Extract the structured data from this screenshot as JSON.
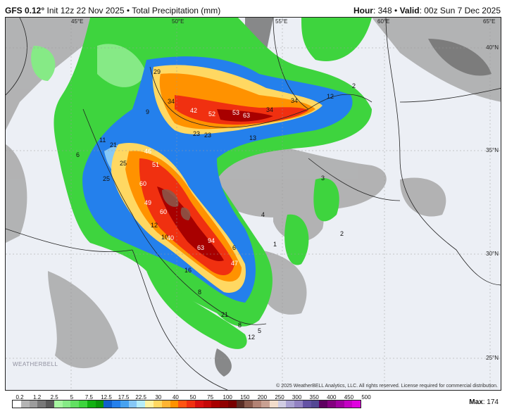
{
  "header": {
    "model": "GFS 0.12°",
    "init": "Init 12z 22 Nov 2025",
    "separator": "•",
    "product": "Total Precipitation (mm)",
    "hour_label": "Hour",
    "hour": ": 348",
    "valid_label": "Valid",
    "valid": ": 00z Sun 7 Dec 2025"
  },
  "map": {
    "lon_labels": [
      "45°E",
      "50°E",
      "55°E",
      "60°E",
      "65°E"
    ],
    "lat_labels": [
      "40°N",
      "35°N",
      "30°N",
      "25°N"
    ],
    "value_labels": [
      "29",
      "34",
      "42",
      "52",
      "53",
      "63",
      "34",
      "34",
      "12",
      "23",
      "23",
      "13",
      "9",
      "11",
      "6",
      "21",
      "25",
      "25",
      "46",
      "51",
      "60",
      "49",
      "60",
      "12",
      "10",
      "40",
      "63",
      "94",
      "47",
      "16",
      "8",
      "21",
      "8",
      "12",
      "4",
      "2",
      "6",
      "5",
      "3",
      "2",
      "1"
    ],
    "copyright": "© 2025 WeatherBELL Analytics, LLC. All rights reserved. License required for commercial distribution.",
    "logo": "WEATHERBELL"
  },
  "legend": {
    "labels": [
      "0.2",
      "1.2",
      "2.5",
      "5",
      "7.5",
      "12.5",
      "17.5",
      "22.5",
      "30",
      "40",
      "50",
      "75",
      "100",
      "150",
      "200",
      "250",
      "300",
      "350",
      "400",
      "450",
      "500"
    ],
    "colors": [
      "#ffffff",
      "#b4b4b4",
      "#9c9c9c",
      "#787878",
      "#5a5a5a",
      "#a6f5a0",
      "#86ea86",
      "#62e062",
      "#3ed43e",
      "#12b012",
      "#0a960a",
      "#1060cc",
      "#2480ec",
      "#46a2f0",
      "#86c8f6",
      "#b4ecf8",
      "#fff2a0",
      "#ffd862",
      "#ffb432",
      "#ff9200",
      "#ff5412",
      "#f03010",
      "#d81010",
      "#c40808",
      "#a80000",
      "#900000",
      "#780000",
      "#5a2e26",
      "#8a5a4c",
      "#b28274",
      "#c8a092",
      "#f2dcca",
      "#d0cce2",
      "#aaa2d2",
      "#9282c2",
      "#6452a4",
      "#544894",
      "#5e0060",
      "#82007e",
      "#a000a0",
      "#c400c4",
      "#e000e0"
    ],
    "max_label": "Max",
    "max_value": ": 174"
  }
}
